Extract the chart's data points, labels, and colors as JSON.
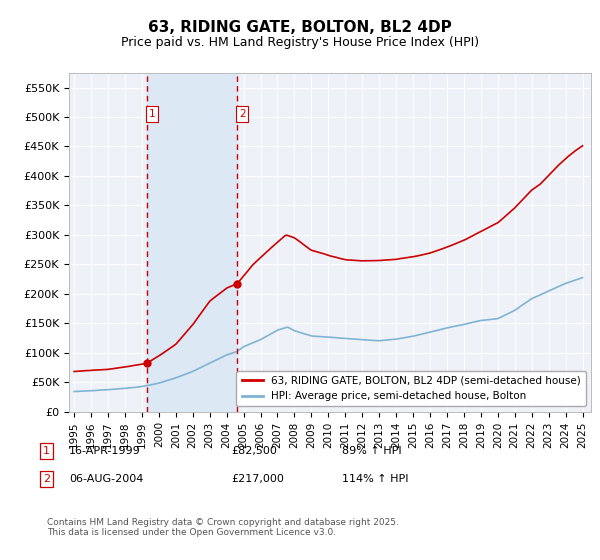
{
  "title": "63, RIDING GATE, BOLTON, BL2 4DP",
  "subtitle": "Price paid vs. HM Land Registry's House Price Index (HPI)",
  "ylim": [
    0,
    575000
  ],
  "yticks": [
    0,
    50000,
    100000,
    150000,
    200000,
    250000,
    300000,
    350000,
    400000,
    450000,
    500000,
    550000
  ],
  "ytick_labels": [
    "£0",
    "£50K",
    "£100K",
    "£150K",
    "£200K",
    "£250K",
    "£300K",
    "£350K",
    "£400K",
    "£450K",
    "£500K",
    "£550K"
  ],
  "xlim_left": 1994.7,
  "xlim_right": 2025.5,
  "sale1_x": 1999.29,
  "sale1_y": 82500,
  "sale2_x": 2004.62,
  "sale2_y": 217000,
  "sale1_label": "16-APR-1999",
  "sale1_price": "£82,500",
  "sale1_hpi": "89% ↑ HPI",
  "sale2_label": "06-AUG-2004",
  "sale2_price": "£217,000",
  "sale2_hpi": "114% ↑ HPI",
  "legend_line1": "63, RIDING GATE, BOLTON, BL2 4DP (semi-detached house)",
  "legend_line2": "HPI: Average price, semi-detached house, Bolton",
  "footnote": "Contains HM Land Registry data © Crown copyright and database right 2025.\nThis data is licensed under the Open Government Licence v3.0.",
  "line_color_red": "#cc0000",
  "line_color_blue": "#7fb3d3",
  "shade_color": "#dde8f5",
  "bg_color": "#eef2f8"
}
